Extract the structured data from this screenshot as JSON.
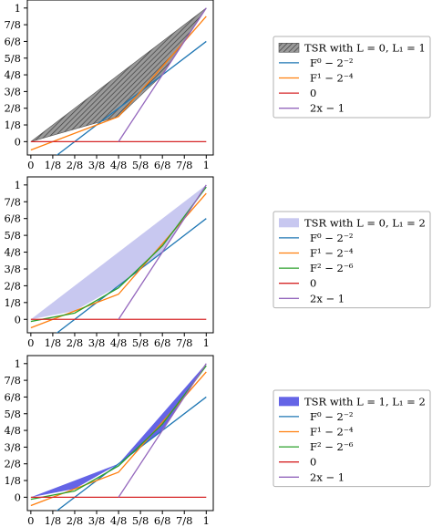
{
  "chart_data": [
    {
      "type": "line",
      "xticks": [
        "0",
        "1/8",
        "2/8",
        "3/8",
        "4/8",
        "5/8",
        "6/8",
        "7/8",
        "1"
      ],
      "yticks": [
        "0",
        "1/8",
        "2/8",
        "3/8",
        "4/8",
        "5/8",
        "6/8",
        "7/8",
        "1"
      ],
      "xlim": [
        -0.02,
        1.04
      ],
      "ylim": [
        -0.1,
        1.06
      ],
      "legend_position": "right",
      "fill": {
        "label": "TSR with L = 0, L₁ = 1",
        "color": "#8c8c8c",
        "pattern": "hatch",
        "upper": [
          [
            0,
            0
          ],
          [
            1,
            1
          ]
        ],
        "lower": [
          [
            0,
            0
          ],
          [
            0.5,
            0.1875
          ],
          [
            0.75,
            0.5
          ],
          [
            1,
            1
          ]
        ]
      },
      "series": [
        {
          "name": "F⁰ − 2⁻²",
          "color": "#1f77b4",
          "points": [
            [
              0,
              -0.25
            ],
            [
              1,
              0.75
            ]
          ]
        },
        {
          "name": "F¹ − 2⁻⁴",
          "color": "#ff7f0e",
          "points": [
            [
              0,
              -0.0625
            ],
            [
              0.5,
              0.1875
            ],
            [
              1,
              0.9375
            ]
          ]
        },
        {
          "name": "0",
          "color": "#d62728",
          "points": [
            [
              0,
              0
            ],
            [
              1,
              0
            ]
          ]
        },
        {
          "name": "2x − 1",
          "color": "#9467bd",
          "points": [
            [
              0.5,
              0
            ],
            [
              1,
              1
            ]
          ]
        }
      ]
    },
    {
      "type": "line",
      "xticks": [
        "0",
        "1/8",
        "2/8",
        "3/8",
        "4/8",
        "5/8",
        "6/8",
        "7/8",
        "1"
      ],
      "yticks": [
        "0",
        "1/8",
        "2/8",
        "3/8",
        "4/8",
        "5/8",
        "6/8",
        "7/8",
        "1"
      ],
      "xlim": [
        -0.02,
        1.04
      ],
      "ylim": [
        -0.1,
        1.06
      ],
      "legend_position": "right",
      "fill": {
        "label": "TSR with L = 0, L₁ = 2",
        "color": "#c8c8f0",
        "pattern": "solid",
        "upper": [
          [
            0,
            0
          ],
          [
            1,
            1
          ]
        ],
        "lower": [
          [
            0,
            0
          ],
          [
            0.25,
            0.0625
          ],
          [
            0.5,
            0.25
          ],
          [
            0.75,
            0.5
          ],
          [
            1,
            1
          ]
        ]
      },
      "series": [
        {
          "name": "F⁰ − 2⁻²",
          "color": "#1f77b4",
          "points": [
            [
              0,
              -0.25
            ],
            [
              1,
              0.75
            ]
          ]
        },
        {
          "name": "F¹ − 2⁻⁴",
          "color": "#ff7f0e",
          "points": [
            [
              0,
              -0.0625
            ],
            [
              0.5,
              0.1875
            ],
            [
              1,
              0.9375
            ]
          ]
        },
        {
          "name": "F² − 2⁻⁶",
          "color": "#2ca02c",
          "points": [
            [
              0,
              -0.015625
            ],
            [
              0.25,
              0.046875
            ],
            [
              0.5,
              0.234375
            ],
            [
              0.75,
              0.546875
            ],
            [
              1,
              0.984375
            ]
          ]
        },
        {
          "name": "0",
          "color": "#d62728",
          "points": [
            [
              0,
              0
            ],
            [
              1,
              0
            ]
          ]
        },
        {
          "name": "2x − 1",
          "color": "#9467bd",
          "points": [
            [
              0.5,
              0
            ],
            [
              1,
              1
            ]
          ]
        }
      ]
    },
    {
      "type": "line",
      "xticks": [
        "0",
        "1/8",
        "2/8",
        "3/8",
        "4/8",
        "5/8",
        "6/8",
        "7/8",
        "1"
      ],
      "yticks": [
        "0",
        "1/8",
        "2/8",
        "3/8",
        "4/8",
        "5/8",
        "6/8",
        "7/8",
        "1"
      ],
      "xlim": [
        -0.02,
        1.04
      ],
      "ylim": [
        -0.1,
        1.06
      ],
      "legend_position": "right",
      "fill": {
        "label": "TSR with L = 1, L₁ = 2",
        "color": "#6464e6",
        "pattern": "solid",
        "upper": [
          [
            0,
            0
          ],
          [
            0.5,
            0.25
          ],
          [
            1,
            1
          ]
        ],
        "lower": [
          [
            0,
            0
          ],
          [
            0.25,
            0.0625
          ],
          [
            0.5,
            0.25
          ],
          [
            0.75,
            0.5
          ],
          [
            1,
            1
          ]
        ]
      },
      "series": [
        {
          "name": "F⁰ − 2⁻²",
          "color": "#1f77b4",
          "points": [
            [
              0,
              -0.25
            ],
            [
              1,
              0.75
            ]
          ]
        },
        {
          "name": "F¹ − 2⁻⁴",
          "color": "#ff7f0e",
          "points": [
            [
              0,
              -0.0625
            ],
            [
              0.5,
              0.1875
            ],
            [
              1,
              0.9375
            ]
          ]
        },
        {
          "name": "F² − 2⁻⁶",
          "color": "#2ca02c",
          "points": [
            [
              0,
              -0.015625
            ],
            [
              0.25,
              0.046875
            ],
            [
              0.5,
              0.234375
            ],
            [
              0.75,
              0.546875
            ],
            [
              1,
              0.984375
            ]
          ]
        },
        {
          "name": "0",
          "color": "#d62728",
          "points": [
            [
              0,
              0
            ],
            [
              1,
              0
            ]
          ]
        },
        {
          "name": "2x − 1",
          "color": "#9467bd",
          "points": [
            [
              0.5,
              0
            ],
            [
              1,
              1
            ]
          ]
        }
      ]
    }
  ]
}
